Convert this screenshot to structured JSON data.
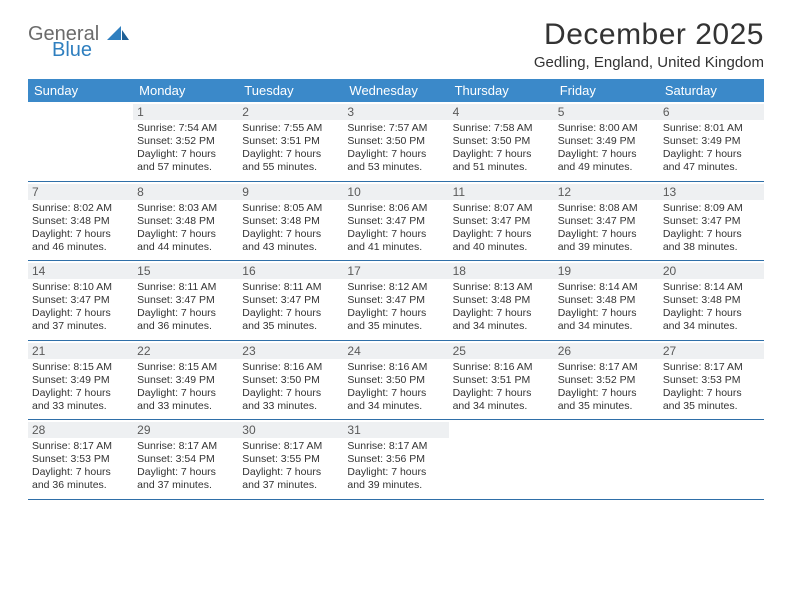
{
  "logo": {
    "general": "General",
    "blue": "Blue"
  },
  "title": "December 2025",
  "location": "Gedling, England, United Kingdom",
  "colors": {
    "header_bg": "#3b89c9",
    "header_text": "#ffffff",
    "daynum_bg": "#eef0f2",
    "border": "#2f6fa8",
    "text": "#333333",
    "logo_gray": "#6b6b6b",
    "logo_blue": "#2f7fbf"
  },
  "weekdays": [
    "Sunday",
    "Monday",
    "Tuesday",
    "Wednesday",
    "Thursday",
    "Friday",
    "Saturday"
  ],
  "weeks": [
    [
      {
        "n": "",
        "sr": "",
        "ss": "",
        "dl": ""
      },
      {
        "n": "1",
        "sr": "Sunrise: 7:54 AM",
        "ss": "Sunset: 3:52 PM",
        "dl": "Daylight: 7 hours and 57 minutes."
      },
      {
        "n": "2",
        "sr": "Sunrise: 7:55 AM",
        "ss": "Sunset: 3:51 PM",
        "dl": "Daylight: 7 hours and 55 minutes."
      },
      {
        "n": "3",
        "sr": "Sunrise: 7:57 AM",
        "ss": "Sunset: 3:50 PM",
        "dl": "Daylight: 7 hours and 53 minutes."
      },
      {
        "n": "4",
        "sr": "Sunrise: 7:58 AM",
        "ss": "Sunset: 3:50 PM",
        "dl": "Daylight: 7 hours and 51 minutes."
      },
      {
        "n": "5",
        "sr": "Sunrise: 8:00 AM",
        "ss": "Sunset: 3:49 PM",
        "dl": "Daylight: 7 hours and 49 minutes."
      },
      {
        "n": "6",
        "sr": "Sunrise: 8:01 AM",
        "ss": "Sunset: 3:49 PM",
        "dl": "Daylight: 7 hours and 47 minutes."
      }
    ],
    [
      {
        "n": "7",
        "sr": "Sunrise: 8:02 AM",
        "ss": "Sunset: 3:48 PM",
        "dl": "Daylight: 7 hours and 46 minutes."
      },
      {
        "n": "8",
        "sr": "Sunrise: 8:03 AM",
        "ss": "Sunset: 3:48 PM",
        "dl": "Daylight: 7 hours and 44 minutes."
      },
      {
        "n": "9",
        "sr": "Sunrise: 8:05 AM",
        "ss": "Sunset: 3:48 PM",
        "dl": "Daylight: 7 hours and 43 minutes."
      },
      {
        "n": "10",
        "sr": "Sunrise: 8:06 AM",
        "ss": "Sunset: 3:47 PM",
        "dl": "Daylight: 7 hours and 41 minutes."
      },
      {
        "n": "11",
        "sr": "Sunrise: 8:07 AM",
        "ss": "Sunset: 3:47 PM",
        "dl": "Daylight: 7 hours and 40 minutes."
      },
      {
        "n": "12",
        "sr": "Sunrise: 8:08 AM",
        "ss": "Sunset: 3:47 PM",
        "dl": "Daylight: 7 hours and 39 minutes."
      },
      {
        "n": "13",
        "sr": "Sunrise: 8:09 AM",
        "ss": "Sunset: 3:47 PM",
        "dl": "Daylight: 7 hours and 38 minutes."
      }
    ],
    [
      {
        "n": "14",
        "sr": "Sunrise: 8:10 AM",
        "ss": "Sunset: 3:47 PM",
        "dl": "Daylight: 7 hours and 37 minutes."
      },
      {
        "n": "15",
        "sr": "Sunrise: 8:11 AM",
        "ss": "Sunset: 3:47 PM",
        "dl": "Daylight: 7 hours and 36 minutes."
      },
      {
        "n": "16",
        "sr": "Sunrise: 8:11 AM",
        "ss": "Sunset: 3:47 PM",
        "dl": "Daylight: 7 hours and 35 minutes."
      },
      {
        "n": "17",
        "sr": "Sunrise: 8:12 AM",
        "ss": "Sunset: 3:47 PM",
        "dl": "Daylight: 7 hours and 35 minutes."
      },
      {
        "n": "18",
        "sr": "Sunrise: 8:13 AM",
        "ss": "Sunset: 3:48 PM",
        "dl": "Daylight: 7 hours and 34 minutes."
      },
      {
        "n": "19",
        "sr": "Sunrise: 8:14 AM",
        "ss": "Sunset: 3:48 PM",
        "dl": "Daylight: 7 hours and 34 minutes."
      },
      {
        "n": "20",
        "sr": "Sunrise: 8:14 AM",
        "ss": "Sunset: 3:48 PM",
        "dl": "Daylight: 7 hours and 34 minutes."
      }
    ],
    [
      {
        "n": "21",
        "sr": "Sunrise: 8:15 AM",
        "ss": "Sunset: 3:49 PM",
        "dl": "Daylight: 7 hours and 33 minutes."
      },
      {
        "n": "22",
        "sr": "Sunrise: 8:15 AM",
        "ss": "Sunset: 3:49 PM",
        "dl": "Daylight: 7 hours and 33 minutes."
      },
      {
        "n": "23",
        "sr": "Sunrise: 8:16 AM",
        "ss": "Sunset: 3:50 PM",
        "dl": "Daylight: 7 hours and 33 minutes."
      },
      {
        "n": "24",
        "sr": "Sunrise: 8:16 AM",
        "ss": "Sunset: 3:50 PM",
        "dl": "Daylight: 7 hours and 34 minutes."
      },
      {
        "n": "25",
        "sr": "Sunrise: 8:16 AM",
        "ss": "Sunset: 3:51 PM",
        "dl": "Daylight: 7 hours and 34 minutes."
      },
      {
        "n": "26",
        "sr": "Sunrise: 8:17 AM",
        "ss": "Sunset: 3:52 PM",
        "dl": "Daylight: 7 hours and 35 minutes."
      },
      {
        "n": "27",
        "sr": "Sunrise: 8:17 AM",
        "ss": "Sunset: 3:53 PM",
        "dl": "Daylight: 7 hours and 35 minutes."
      }
    ],
    [
      {
        "n": "28",
        "sr": "Sunrise: 8:17 AM",
        "ss": "Sunset: 3:53 PM",
        "dl": "Daylight: 7 hours and 36 minutes."
      },
      {
        "n": "29",
        "sr": "Sunrise: 8:17 AM",
        "ss": "Sunset: 3:54 PM",
        "dl": "Daylight: 7 hours and 37 minutes."
      },
      {
        "n": "30",
        "sr": "Sunrise: 8:17 AM",
        "ss": "Sunset: 3:55 PM",
        "dl": "Daylight: 7 hours and 37 minutes."
      },
      {
        "n": "31",
        "sr": "Sunrise: 8:17 AM",
        "ss": "Sunset: 3:56 PM",
        "dl": "Daylight: 7 hours and 39 minutes."
      },
      {
        "n": "",
        "sr": "",
        "ss": "",
        "dl": ""
      },
      {
        "n": "",
        "sr": "",
        "ss": "",
        "dl": ""
      },
      {
        "n": "",
        "sr": "",
        "ss": "",
        "dl": ""
      }
    ]
  ]
}
